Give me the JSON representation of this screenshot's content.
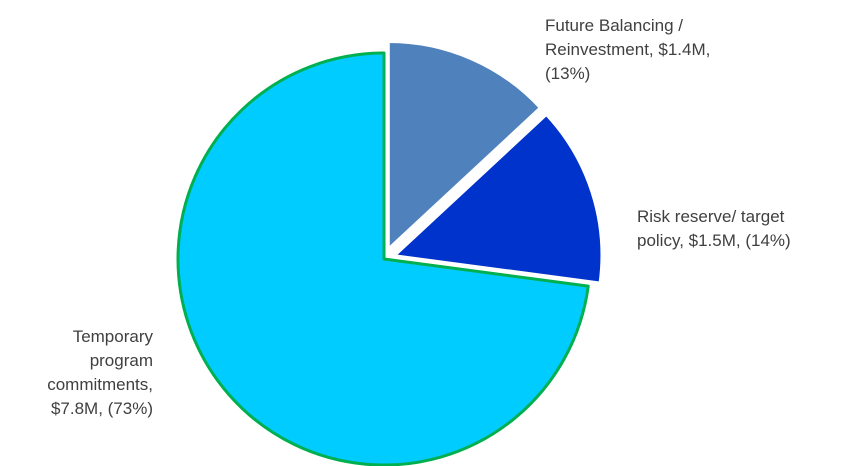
{
  "chart_data": {
    "type": "pie",
    "slices": [
      {
        "name": "Future Balancing / Reinvestment",
        "value_label": "$1.4M",
        "percent_label": "(13%)",
        "value": 1.4,
        "percent": 13,
        "color": "#4f81bd",
        "exploded": true,
        "label_lines": [
          "Future Balancing /",
          "Reinvestment, $1.4M,",
          "(13%)"
        ]
      },
      {
        "name": "Risk reserve/ target policy",
        "value_label": "$1.5M",
        "percent_label": "(14%)",
        "value": 1.5,
        "percent": 14,
        "color": "#0033cc",
        "exploded": true,
        "label_lines": [
          "Risk reserve/ target",
          "policy, $1.5M, (14%)"
        ]
      },
      {
        "name": "Temporary program commitments",
        "value_label": "$7.8M",
        "percent_label": "(73%)",
        "value": 7.8,
        "percent": 73,
        "color": "#00ccff",
        "exploded": false,
        "outline_color": "#00b050",
        "label_lines": [
          "Temporary",
          "program",
          "commitments,",
          "$7.8M, (73%)"
        ]
      }
    ],
    "legend": "none",
    "start_angle_deg": 0,
    "direction": "clockwise"
  }
}
